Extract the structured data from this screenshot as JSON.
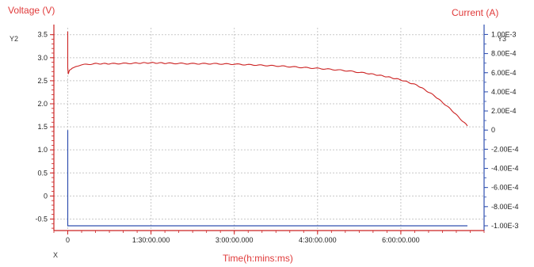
{
  "chart_data": {
    "type": "line",
    "title": "",
    "left_axis_title": "Voltage  (V)",
    "right_axis_title": "Current (A)",
    "xlabel": "Time(h:mins:ms)",
    "y2_tag": "Y2",
    "y3_tag": "Y3",
    "x_tag": "X",
    "x_unit": "hours",
    "xlim": [
      -0.25,
      7.5
    ],
    "ylim_left": [
      -0.75,
      3.65
    ],
    "ylim_right": [
      -0.00105,
      0.00107
    ],
    "x_ticks": [
      0,
      1.5,
      3,
      4.5,
      6
    ],
    "x_tick_labels": [
      "0",
      "1:30:00.000",
      "3:00:00.000",
      "4:30:00.000",
      "6:00:00.000"
    ],
    "y_left_ticks": [
      -0.5,
      0,
      0.5,
      1.0,
      1.5,
      2.0,
      2.5,
      3.0,
      3.5
    ],
    "y_left_tick_labels": [
      "-0.5",
      "0",
      "0.5",
      "1.0",
      "1.5",
      "2.0",
      "2.5",
      "3.0",
      "3.5"
    ],
    "y_right_ticks": [
      -0.001,
      -0.0008,
      -0.0006,
      -0.0004,
      -0.0002,
      0,
      0.0002,
      0.0004,
      0.0006,
      0.0008,
      0.001
    ],
    "y_right_tick_labels": [
      "-1.00E-3",
      "-8.00E-4",
      "-6.00E-4",
      "-4.00E-4",
      "-2.00E-4",
      "0",
      "2.00E-4",
      "4.00E-4",
      "6.00E-4",
      "8.00E-4",
      "1.00E-3"
    ],
    "grid": true,
    "series": [
      {
        "axis": "left",
        "color": "#cc2222",
        "x": [
          0,
          0,
          0.01,
          0.03,
          0.08,
          0.15,
          0.3,
          0.5,
          0.8,
          1.2,
          1.5,
          1.8,
          2.2,
          2.6,
          3.0,
          3.4,
          3.8,
          4.2,
          4.6,
          5.0,
          5.4,
          5.7,
          6.0,
          6.3,
          6.6,
          6.9,
          7.2
        ],
        "y": [
          3.57,
          2.78,
          2.65,
          2.72,
          2.78,
          2.82,
          2.85,
          2.87,
          2.87,
          2.88,
          2.89,
          2.88,
          2.87,
          2.87,
          2.86,
          2.84,
          2.82,
          2.79,
          2.76,
          2.72,
          2.66,
          2.6,
          2.52,
          2.4,
          2.18,
          1.88,
          1.52
        ]
      },
      {
        "axis": "right",
        "color": "#3050b0",
        "x": [
          0,
          0,
          0.01,
          7.2
        ],
        "y": [
          0,
          -0.001,
          -0.001,
          -0.001
        ]
      }
    ]
  }
}
